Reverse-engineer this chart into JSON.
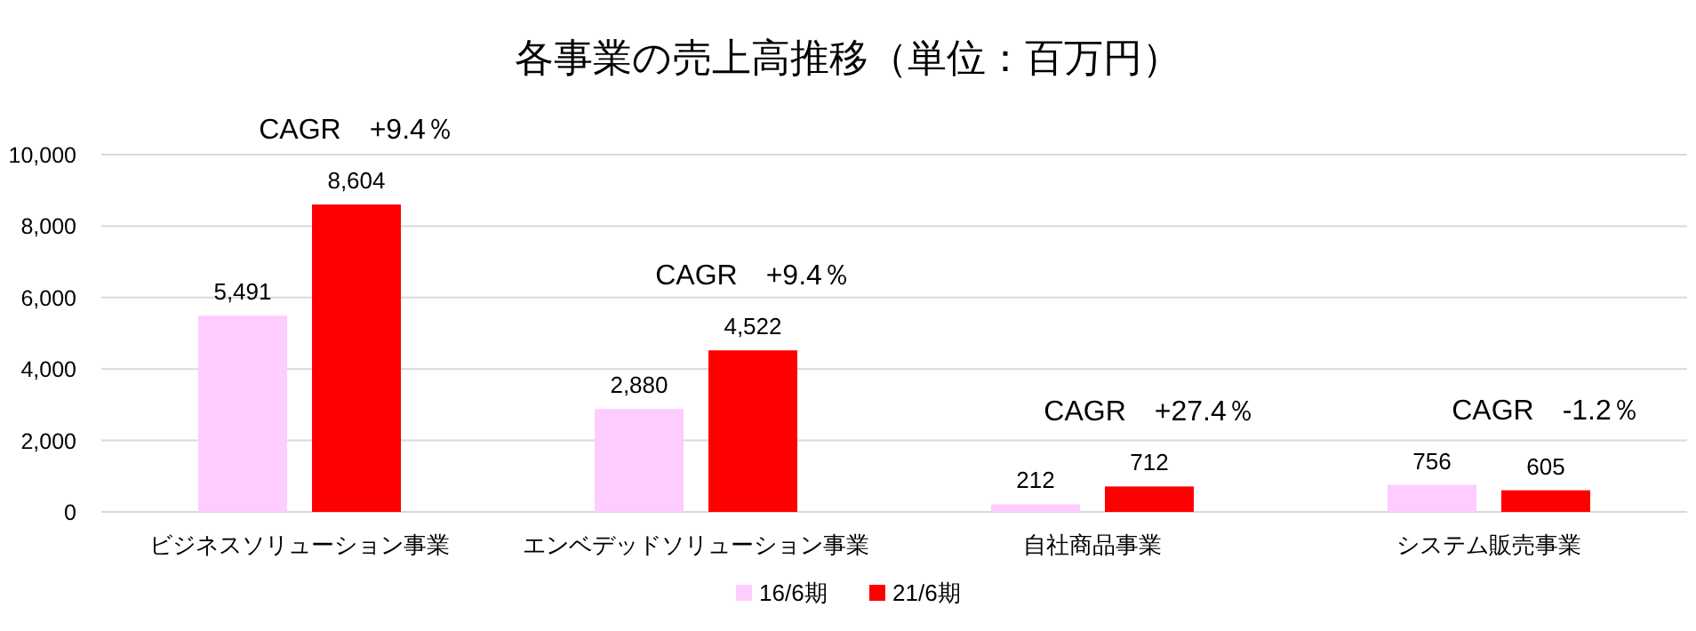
{
  "chart_data": {
    "type": "bar",
    "title": "各事業の売上高推移（単位：百万円）",
    "categories": [
      "ビジネスソリューション事業",
      "エンベデッドソリューション事業",
      "自社商品事業",
      "システム販売事業"
    ],
    "series": [
      {
        "name": "16/6期",
        "color": "#ffccff",
        "values": [
          5491,
          2880,
          212,
          756
        ],
        "value_labels": [
          "5,491",
          "2,880",
          "212",
          "756"
        ]
      },
      {
        "name": "21/6期",
        "color": "#ff0000",
        "values": [
          8604,
          4522,
          712,
          605
        ],
        "value_labels": [
          "8,604",
          "4,522",
          "712",
          "605"
        ]
      }
    ],
    "ylim": [
      0,
      10000
    ],
    "yticks": [
      {
        "value": 0,
        "label": "0"
      },
      {
        "value": 2000,
        "label": "2,000"
      },
      {
        "value": 4000,
        "label": "4,000"
      },
      {
        "value": 6000,
        "label": "6,000"
      },
      {
        "value": 8000,
        "label": "8,000"
      },
      {
        "value": 10000,
        "label": "10,000"
      }
    ],
    "grid": "y",
    "legend": "bottom",
    "annotations": [
      "CAGR　+9.4％",
      "CAGR　+9.4％",
      "CAGR　+27.4％",
      "CAGR　-1.2％"
    ]
  }
}
